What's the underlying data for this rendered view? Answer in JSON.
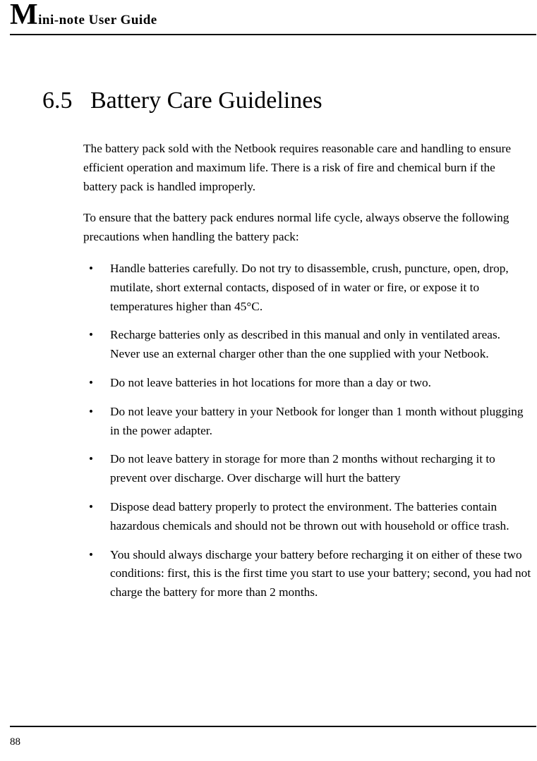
{
  "header": {
    "big_letter": "M",
    "rest": "ini-note User Guide"
  },
  "section": {
    "number": "6.5",
    "title": "Battery Care Guidelines"
  },
  "paragraphs": {
    "p1": "The battery pack sold with the Netbook requires reasonable care and handling to ensure efficient operation and maximum life. There is a risk of fire and chemical burn if the battery pack is handled improperly.",
    "p2": "To ensure that the battery pack endures normal life cycle, always observe the following precautions when handling the battery pack:"
  },
  "bullets": {
    "b1": "Handle batteries carefully. Do not try to disassemble, crush, puncture, open, drop, mutilate, short external contacts, disposed of in water or fire, or expose it to temperatures higher than 45°C.",
    "b2": "Recharge batteries only as described in this manual and only in ventilated areas. Never use an external charger other than the one supplied with your Netbook.",
    "b3": "Do not leave batteries in hot locations for more than a day or two.",
    "b4": "Do not leave your battery in your Netbook for longer than 1 month without plugging in the power adapter.",
    "b5": "Do not leave battery in storage for more than 2 months without recharging it to prevent over discharge. Over discharge will hurt the battery",
    "b6": "Dispose dead battery properly to protect the environment. The batteries contain hazardous chemicals and should not be thrown out with household or office trash.",
    "b7": "You should always discharge your battery before recharging it on either of these two conditions: first, this is the first time you start to use your battery; second, you had not charge the battery for more than 2 months."
  },
  "page_number": "88",
  "colors": {
    "text": "#000000",
    "background": "#ffffff",
    "rule": "#000000"
  },
  "typography": {
    "body_fontsize_pt": 13,
    "heading_fontsize_pt": 26,
    "header_big_fontsize_pt": 32,
    "header_small_fontsize_pt": 14,
    "font_family": "Palatino / Book Antiqua style serif"
  }
}
